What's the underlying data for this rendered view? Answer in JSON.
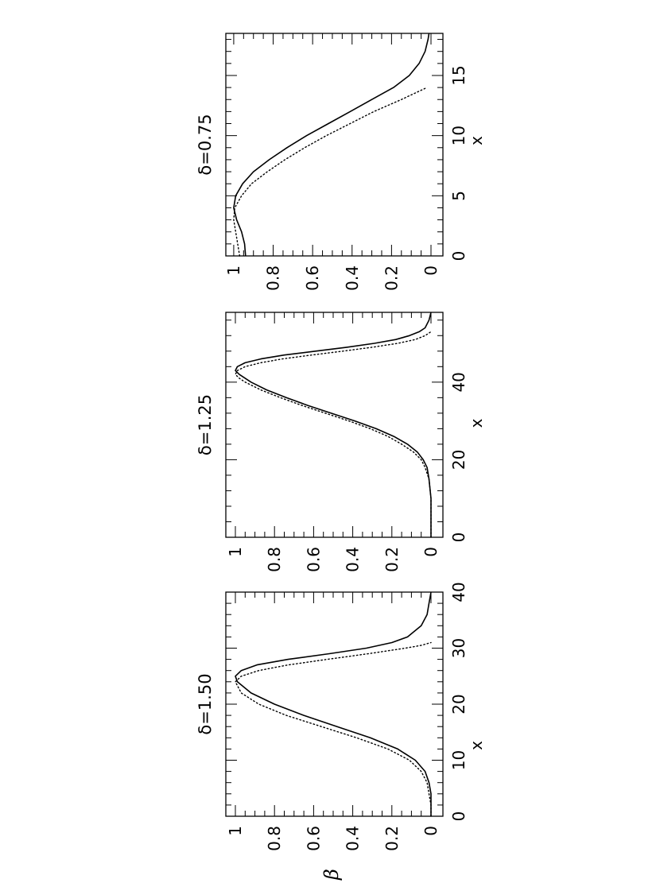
{
  "figure": {
    "y_axis_symbol": "β",
    "axis_line_color": "#000000"
  },
  "chart_data": [
    {
      "type": "line",
      "title": "δ=1.50",
      "xlabel": "x",
      "ylabel": "β",
      "xlim": [
        0,
        40
      ],
      "ylim": [
        0,
        1
      ],
      "x_ticks": [
        0,
        10,
        20,
        30,
        40
      ],
      "y_ticks": [
        0,
        0.2,
        0.4,
        0.6,
        0.8,
        1
      ],
      "x_tick_labels": [
        "0",
        "10",
        "20",
        "30",
        "40"
      ],
      "y_tick_labels": [
        "0",
        "0.2",
        "0.4",
        "0.6",
        "0.8",
        "1"
      ],
      "grid": false,
      "series": [
        {
          "style": "solid",
          "color": "#000000",
          "x": [
            0,
            2,
            4,
            6,
            8,
            10,
            12,
            14,
            16,
            18,
            20,
            22,
            24,
            25,
            26,
            27,
            28,
            29,
            30,
            31,
            32,
            34,
            36,
            38,
            40
          ],
          "y": [
            0.0,
            0.0,
            0.0,
            0.01,
            0.03,
            0.08,
            0.17,
            0.31,
            0.48,
            0.65,
            0.8,
            0.92,
            0.99,
            1.0,
            0.97,
            0.89,
            0.73,
            0.52,
            0.33,
            0.2,
            0.12,
            0.05,
            0.02,
            0.01,
            0.0
          ]
        },
        {
          "style": "dotted",
          "color": "#000000",
          "x": [
            0,
            2,
            4,
            6,
            8,
            10,
            12,
            14,
            16,
            18,
            20,
            22,
            24,
            25,
            26,
            27,
            28,
            29,
            30,
            30.5,
            31
          ],
          "y": [
            0.0,
            0.0,
            0.01,
            0.02,
            0.05,
            0.11,
            0.22,
            0.38,
            0.56,
            0.74,
            0.88,
            0.97,
            1.0,
            0.97,
            0.88,
            0.73,
            0.53,
            0.32,
            0.13,
            0.05,
            0.0
          ]
        }
      ]
    },
    {
      "type": "line",
      "title": "δ=1.25",
      "xlabel": "x",
      "xlim": [
        0,
        58
      ],
      "ylim": [
        0,
        1
      ],
      "x_ticks": [
        0,
        20,
        40
      ],
      "y_ticks": [
        0,
        0.2,
        0.4,
        0.6,
        0.8,
        1
      ],
      "x_tick_labels": [
        "0",
        "20",
        "40"
      ],
      "y_tick_labels": [
        "0",
        "0.2",
        "0.4",
        "0.6",
        "0.8",
        "1"
      ],
      "grid": false,
      "series": [
        {
          "style": "solid",
          "color": "#000000",
          "x": [
            0,
            5,
            10,
            15,
            18,
            20,
            22,
            24,
            26,
            28,
            30,
            32,
            34,
            36,
            38,
            40,
            42,
            43,
            44,
            45,
            46,
            47,
            48,
            49,
            50,
            51,
            52,
            53,
            54,
            56,
            58
          ],
          "y": [
            0.0,
            0.0,
            0.0,
            0.01,
            0.02,
            0.04,
            0.07,
            0.12,
            0.19,
            0.28,
            0.39,
            0.51,
            0.63,
            0.74,
            0.84,
            0.92,
            0.98,
            1.0,
            0.99,
            0.95,
            0.87,
            0.75,
            0.59,
            0.43,
            0.29,
            0.18,
            0.11,
            0.06,
            0.03,
            0.01,
            0.0
          ]
        },
        {
          "style": "dotted",
          "color": "#000000",
          "x": [
            0,
            5,
            10,
            15,
            18,
            20,
            22,
            24,
            26,
            28,
            30,
            32,
            34,
            36,
            38,
            40,
            41,
            42,
            43,
            44,
            45,
            46,
            47,
            48,
            49,
            50,
            51,
            52,
            53
          ],
          "y": [
            0.0,
            0.0,
            0.0,
            0.01,
            0.03,
            0.05,
            0.09,
            0.15,
            0.22,
            0.31,
            0.42,
            0.54,
            0.66,
            0.77,
            0.87,
            0.95,
            0.98,
            1.0,
            0.99,
            0.95,
            0.87,
            0.76,
            0.61,
            0.45,
            0.3,
            0.17,
            0.08,
            0.03,
            0.0
          ]
        }
      ]
    },
    {
      "type": "line",
      "title": "δ=0.75",
      "xlabel": "x",
      "xlim": [
        0,
        18.5
      ],
      "ylim": [
        0,
        1.04
      ],
      "x_ticks": [
        0,
        5,
        10,
        15
      ],
      "y_ticks": [
        0,
        0.2,
        0.4,
        0.6,
        0.8,
        1
      ],
      "x_tick_labels": [
        "0",
        "5",
        "10",
        "15"
      ],
      "y_tick_labels": [
        "0",
        "0.2",
        "0.4",
        "0.6",
        "0.8",
        "1"
      ],
      "grid": false,
      "series": [
        {
          "style": "solid",
          "color": "#000000",
          "x": [
            0,
            1,
            2,
            3,
            4,
            5,
            6,
            7,
            8,
            9,
            10,
            11,
            12,
            13,
            14,
            15,
            16,
            17,
            18,
            18.5
          ],
          "y": [
            0.94,
            0.945,
            0.96,
            0.985,
            1.0,
            0.99,
            0.955,
            0.9,
            0.82,
            0.73,
            0.63,
            0.52,
            0.41,
            0.3,
            0.19,
            0.11,
            0.06,
            0.03,
            0.015,
            0.01
          ]
        },
        {
          "style": "dotted",
          "color": "#000000",
          "x": [
            0,
            1,
            2,
            3,
            4,
            5,
            6,
            7,
            8,
            9,
            10,
            11,
            12,
            13,
            14
          ],
          "y": [
            0.97,
            0.98,
            0.99,
            1.0,
            0.995,
            0.96,
            0.91,
            0.83,
            0.74,
            0.64,
            0.53,
            0.41,
            0.29,
            0.15,
            0.02
          ]
        }
      ]
    }
  ]
}
